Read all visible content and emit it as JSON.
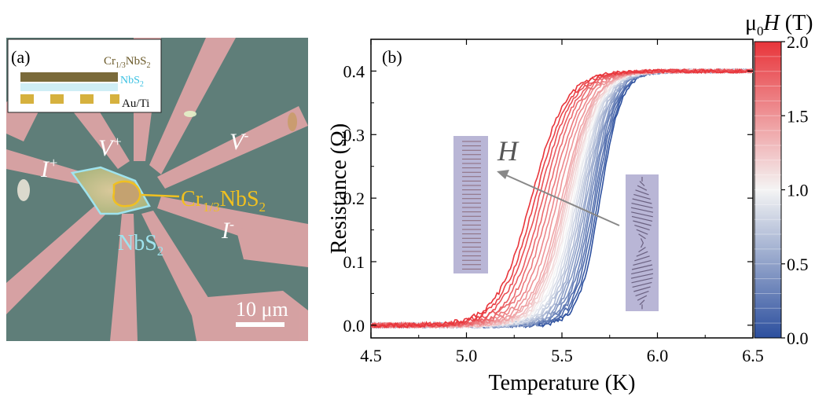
{
  "panel_a": {
    "label": "(a)",
    "layer_top": "Cr",
    "layer_top_sub": "1/3",
    "layer_top_rest": "NbS",
    "layer_top_sub2": "2",
    "layer_mid": "NbS",
    "layer_mid_sub": "2",
    "layer_bottom": "Au/Ti",
    "v_plus": "V",
    "v_plus_sup": "+",
    "v_minus": "V",
    "v_minus_sup": "-",
    "i_plus": "I",
    "i_plus_sup": "+",
    "i_minus": "I",
    "i_minus_sup": "-",
    "flake_label": "Cr",
    "flake_label_sub": "1/3",
    "flake_label_rest": "NbS",
    "flake_label_sub2": "2",
    "nbs2_label": "NbS",
    "nbs2_label_sub": "2",
    "scale_bar": "10 μm"
  },
  "chart_data": {
    "type": "line",
    "panel_label": "(b)",
    "xlabel": "Temperature (K)",
    "ylabel": "Resistance (Ω)",
    "xlim": [
      4.5,
      6.5
    ],
    "ylim": [
      -0.02,
      0.45
    ],
    "xticks": [
      "4.5",
      "5.0",
      "5.5",
      "6.0",
      "6.5"
    ],
    "yticks": [
      "0.0",
      "0.1",
      "0.2",
      "0.3",
      "0.4"
    ],
    "xtick_values": [
      4.5,
      5.0,
      5.5,
      6.0,
      6.5
    ],
    "ytick_values": [
      0.0,
      0.1,
      0.2,
      0.3,
      0.4
    ],
    "normal_resistance": 0.4,
    "transition_midpoints_K": [
      5.7,
      5.69,
      5.68,
      5.67,
      5.66,
      5.65,
      5.64,
      5.63,
      5.62,
      5.61,
      5.6,
      5.59,
      5.58,
      5.57,
      5.56,
      5.55,
      5.54,
      5.53,
      5.52,
      5.51,
      5.5,
      5.48,
      5.46,
      5.44,
      5.42,
      5.4,
      5.38,
      5.36,
      5.34
    ],
    "field_annotation": "H",
    "colorbar": {
      "title_prefix": "μ",
      "title_sub": "0",
      "title_var": "H",
      "title_unit": " (T)",
      "min": 0.0,
      "max": 2.0,
      "ticks": [
        "0.0",
        "0.5",
        "1.0",
        "1.5",
        "2.0"
      ],
      "tick_values": [
        0.0,
        0.5,
        1.0,
        1.5,
        2.0
      ],
      "color_low": "#2c4f9e",
      "color_mid": "#f4f4f4",
      "color_high": "#e8343a"
    }
  }
}
